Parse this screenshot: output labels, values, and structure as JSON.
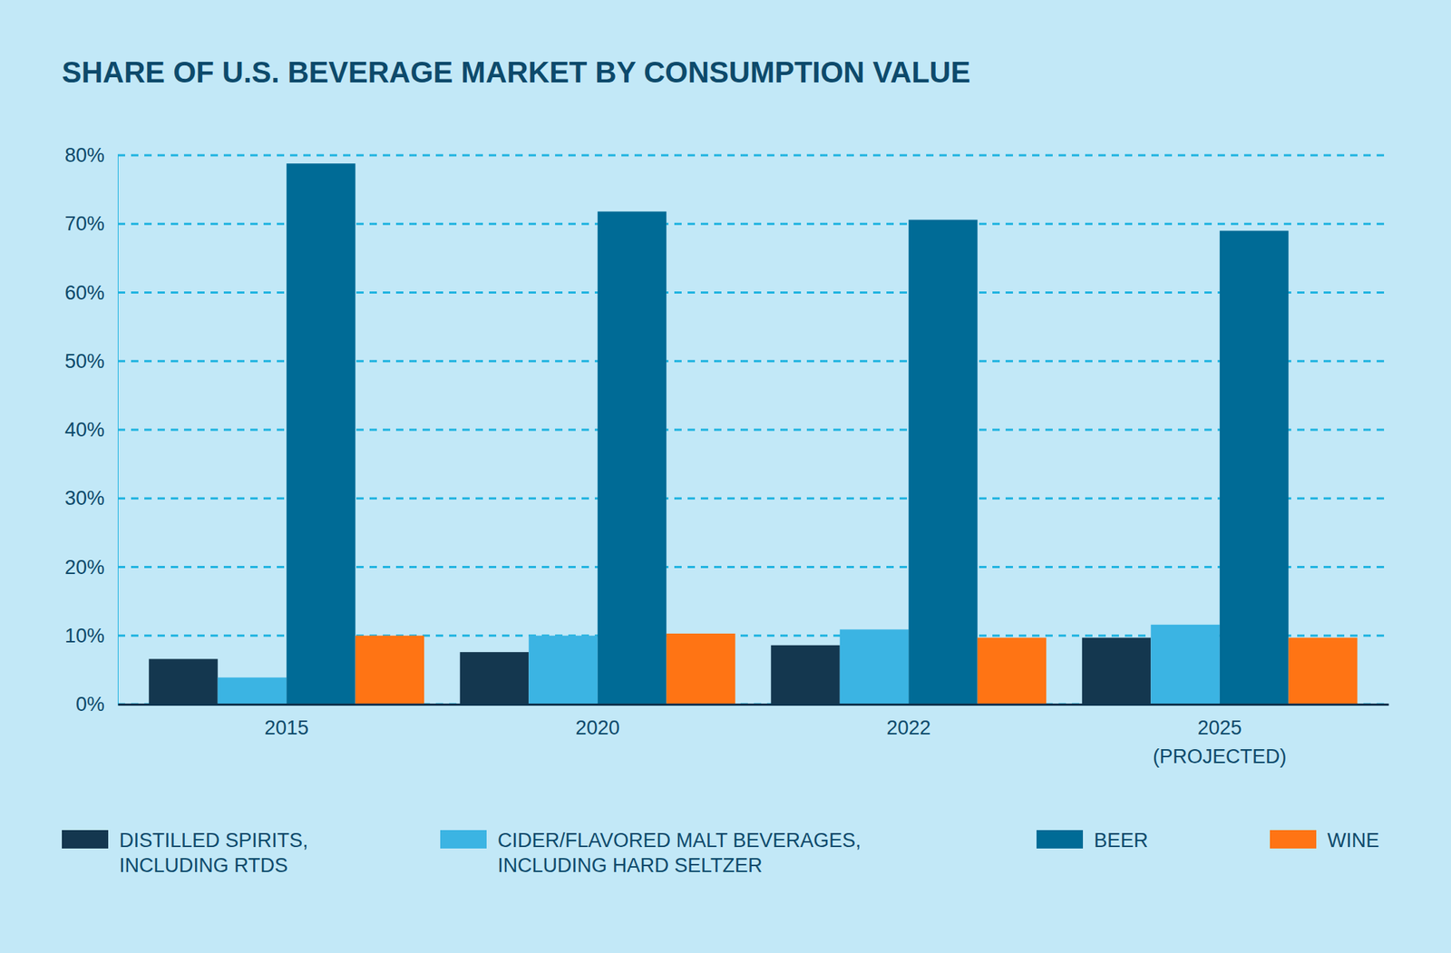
{
  "chart_data": {
    "type": "bar",
    "title": "SHARE OF U.S. BEVERAGE MARKET BY CONSUMPTION VALUE",
    "categories": [
      "2015",
      "2020",
      "2022",
      "2025 (PROJECTED)"
    ],
    "series": [
      {
        "name": "DISTILLED SPIRITS, INCLUDING RTDS",
        "color": "#14374f",
        "values": [
          6.6,
          7.6,
          8.6,
          9.7
        ]
      },
      {
        "name": "CIDER/FLAVORED MALT BEVERAGES, INCLUDING HARD SELTZER",
        "color": "#3bb4e3",
        "values": [
          3.9,
          10.0,
          10.9,
          11.6
        ]
      },
      {
        "name": "BEER",
        "color": "#006b96",
        "values": [
          78.8,
          71.8,
          70.6,
          69.0
        ]
      },
      {
        "name": "WINE",
        "color": "#ff7414",
        "values": [
          10.0,
          10.3,
          9.7,
          9.7
        ]
      }
    ],
    "ylim": [
      0,
      80
    ],
    "yticks": [
      {
        "value": 0,
        "label": "0%"
      },
      {
        "value": 10,
        "label": "10%"
      },
      {
        "value": 20,
        "label": "20%"
      },
      {
        "value": 30,
        "label": "30%"
      },
      {
        "value": 40,
        "label": "40%"
      },
      {
        "value": 50,
        "label": "50%"
      },
      {
        "value": 60,
        "label": "60%"
      },
      {
        "value": 70,
        "label": "70%"
      },
      {
        "value": 80,
        "label": "80%"
      }
    ],
    "grid": true,
    "legend": "bottom"
  }
}
